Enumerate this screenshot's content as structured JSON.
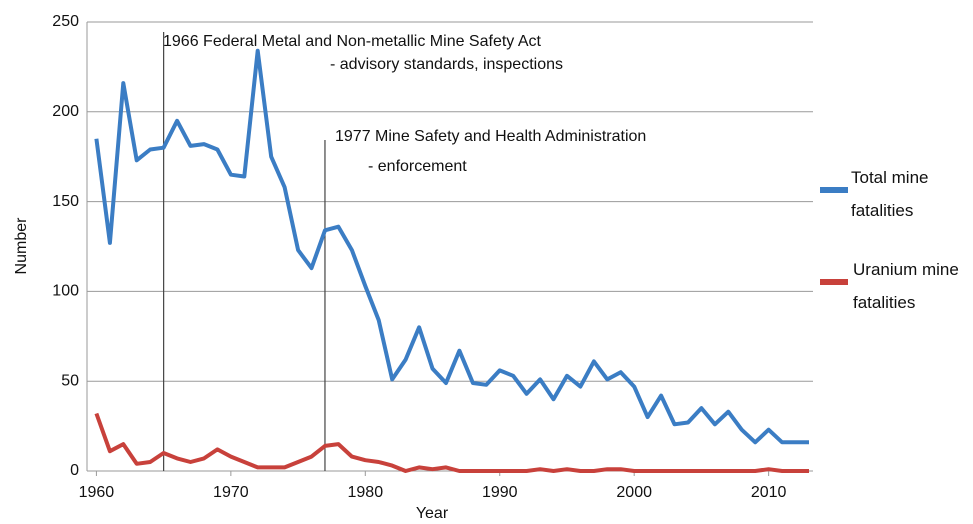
{
  "chart_data": {
    "type": "line",
    "x": [
      1960,
      1961,
      1962,
      1963,
      1964,
      1965,
      1966,
      1967,
      1968,
      1969,
      1970,
      1971,
      1972,
      1973,
      1974,
      1975,
      1976,
      1977,
      1978,
      1979,
      1980,
      1981,
      1982,
      1983,
      1984,
      1985,
      1986,
      1987,
      1988,
      1989,
      1990,
      1991,
      1992,
      1993,
      1994,
      1995,
      1996,
      1997,
      1998,
      1999,
      2000,
      2001,
      2002,
      2003,
      2004,
      2005,
      2006,
      2007,
      2008,
      2009,
      2010,
      2011,
      2012,
      2013
    ],
    "series": [
      {
        "name": "Total mine fatalities",
        "color": "#3b7dc4",
        "values": [
          185,
          127,
          216,
          173,
          179,
          180,
          195,
          181,
          182,
          179,
          165,
          164,
          234,
          175,
          158,
          123,
          113,
          134,
          136,
          123,
          103,
          84,
          51,
          62,
          80,
          57,
          49,
          67,
          49,
          48,
          56,
          53,
          43,
          51,
          40,
          53,
          47,
          61,
          51,
          55,
          47,
          30,
          42,
          26,
          27,
          35,
          26,
          33,
          23,
          16,
          23,
          16,
          16,
          16
        ]
      },
      {
        "name": "Uranium mine fatalities",
        "color": "#c8413b",
        "values": [
          32,
          11,
          15,
          4,
          5,
          10,
          7,
          5,
          7,
          12,
          8,
          5,
          2,
          2,
          2,
          5,
          8,
          14,
          15,
          8,
          6,
          5,
          3,
          0,
          2,
          1,
          2,
          0,
          0,
          0,
          0,
          0,
          0,
          1,
          0,
          1,
          0,
          0,
          1,
          1,
          0,
          0,
          0,
          0,
          0,
          0,
          0,
          0,
          0,
          0,
          1,
          0,
          0,
          0
        ]
      }
    ],
    "annotations": [
      {
        "x": 1965,
        "lines": [
          "1966 Federal Metal and Non-metallic Mine Safety Act",
          "- advisory standards, inspections"
        ]
      },
      {
        "x": 1977,
        "lines": [
          "1977 Mine Safety and Health Administration",
          "- enforcement"
        ]
      }
    ],
    "xlabel": "Year",
    "ylabel": "Number",
    "xlim": [
      1959.3,
      2013.3
    ],
    "xticks": [
      1960,
      1970,
      1980,
      1990,
      2000,
      2010
    ],
    "ylim": [
      0,
      250
    ],
    "yticks": [
      0,
      50,
      100,
      150,
      200,
      250
    ],
    "grid": true,
    "legend": "right"
  }
}
